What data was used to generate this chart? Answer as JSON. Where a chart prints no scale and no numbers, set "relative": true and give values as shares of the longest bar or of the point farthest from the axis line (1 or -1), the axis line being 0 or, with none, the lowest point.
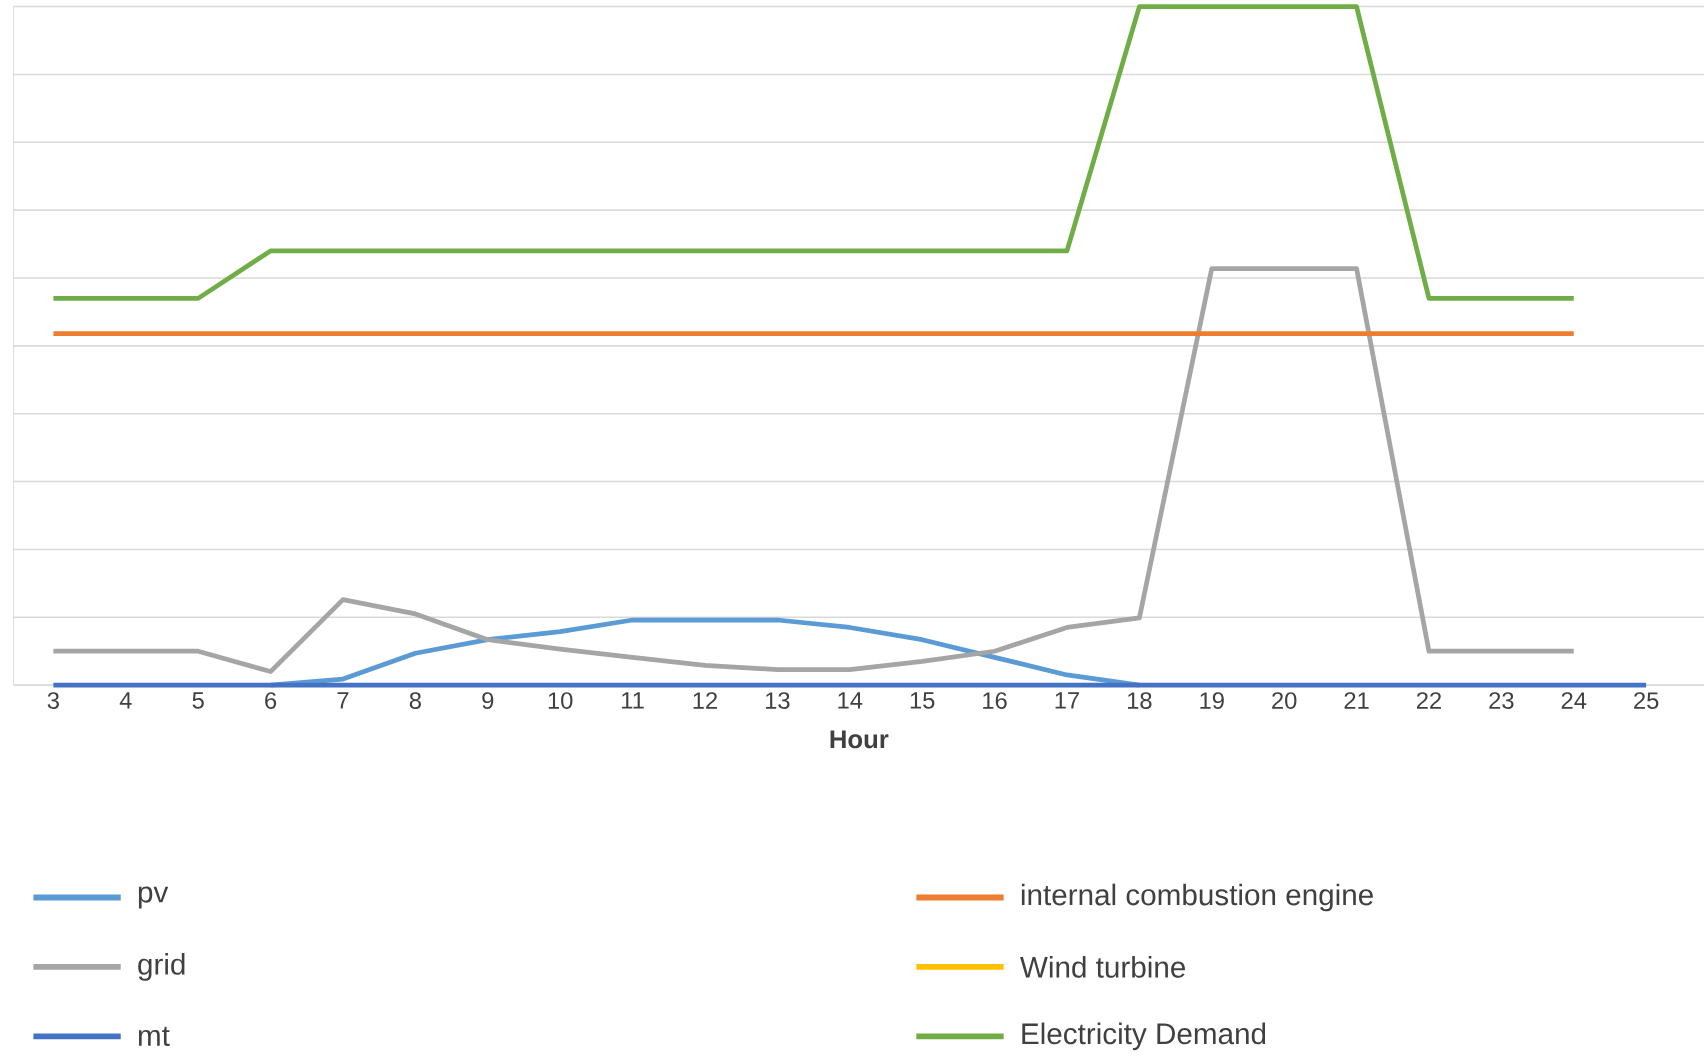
{
  "chart_data": {
    "type": "line",
    "relative": true,
    "xlabel": "Hour",
    "grid": "y",
    "legend": "bottom",
    "categories": [
      "3",
      "4",
      "5",
      "6",
      "7",
      "8",
      "9",
      "10",
      "11",
      "12",
      "13",
      "14",
      "15",
      "16",
      "17",
      "18",
      "19",
      "20",
      "21",
      "22",
      "23",
      "24",
      "25"
    ],
    "series": [
      {
        "name": "pv",
        "color": "#5b9bd5",
        "values": [
          null,
          null,
          null,
          0,
          0.009,
          0.047,
          0.067,
          0.079,
          0.096,
          0.096,
          0.096,
          0.085,
          0.067,
          0.041,
          0.015,
          0,
          null,
          null,
          null,
          null,
          null,
          null,
          null
        ]
      },
      {
        "name": "grid",
        "color": "#a5a5a5",
        "values": [
          0.05,
          0.05,
          0.05,
          0.02,
          0.126,
          0.105,
          0.067,
          0.053,
          0.041,
          0.029,
          0.023,
          0.023,
          0.035,
          0.05,
          0.085,
          0.099,
          0.614,
          0.614,
          0.614,
          0.05,
          0.05,
          0.05,
          null
        ]
      },
      {
        "name": "mt",
        "color": "#4472c4",
        "values": [
          0,
          0,
          0,
          0,
          0,
          0,
          0,
          0,
          0,
          0,
          0,
          0,
          0,
          0,
          0,
          0,
          0,
          0,
          0,
          0,
          0,
          0,
          0
        ]
      },
      {
        "name": "internal combustion engine",
        "color": "#ed7d31",
        "values": [
          0.518,
          0.518,
          0.518,
          0.518,
          0.518,
          0.518,
          0.518,
          0.518,
          0.518,
          0.518,
          0.518,
          0.518,
          0.518,
          0.518,
          0.518,
          0.518,
          0.518,
          0.518,
          0.518,
          0.518,
          0.518,
          0.518,
          null
        ]
      },
      {
        "name": "Wind turbine",
        "color": "#ffc000",
        "values": [
          null,
          null,
          null,
          null,
          null,
          null,
          null,
          null,
          null,
          null,
          null,
          null,
          null,
          null,
          null,
          null,
          null,
          null,
          null,
          null,
          null,
          null,
          null
        ]
      },
      {
        "name": "Electricity Demand",
        "color": "#70ad47",
        "values": [
          0.57,
          0.57,
          0.57,
          0.64,
          0.64,
          0.64,
          0.64,
          0.64,
          0.64,
          0.64,
          0.64,
          0.64,
          0.64,
          0.64,
          0.64,
          1,
          1,
          1,
          1,
          0.57,
          0.57,
          0.57,
          null
        ]
      }
    ]
  }
}
